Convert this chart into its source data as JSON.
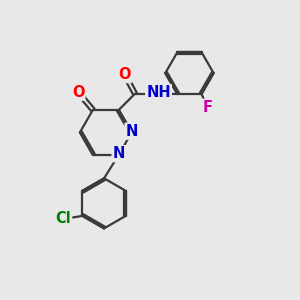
{
  "bg_color": "#e8e8e8",
  "bond_color": "#3a3a3a",
  "line_width": 1.6,
  "atom_colors": {
    "O": "#ff0000",
    "N": "#0000cc",
    "Cl": "#008000",
    "F": "#cc00aa",
    "H": "#888888",
    "C": "#3a3a3a"
  },
  "font_size": 10.5,
  "small_font_size": 9.5
}
